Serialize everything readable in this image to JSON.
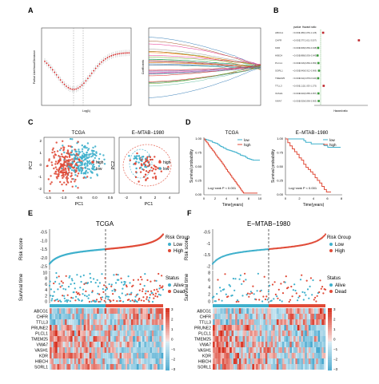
{
  "panels": {
    "A": {
      "letter": "A",
      "xlabel": "Log(λ)",
      "ylabel_left": "Partial Likelihood Deviance",
      "ylabel_right": "Coefficients"
    },
    "B": {
      "letter": "B",
      "col_pvalue": "pvalue",
      "col_hr": "Hazard ratio",
      "xlabel": "Hazard ratio",
      "rows": [
        {
          "gene": "ABCG1",
          "p": "<0.001",
          "hr": "1.089(1.053-1.125)",
          "value": 1.09
        },
        {
          "gene": "CHFR",
          "p": "<0.001",
          "hr": "2.377(1.611-3.507)",
          "value": 2.38
        },
        {
          "gene": "KDR",
          "p": "<0.001",
          "hr": "0.908(0.869-0.948)",
          "value": 0.91
        },
        {
          "gene": "HIBCH",
          "p": "<0.001",
          "hr": "0.888(0.836-0.943)",
          "value": 0.89
        },
        {
          "gene": "PLCL1",
          "p": "<0.001",
          "hr": "0.916(0.884-0.950)",
          "value": 0.92
        },
        {
          "gene": "SORL1",
          "p": "<0.001",
          "hr": "0.940(0.912-0.969)",
          "value": 0.94
        },
        {
          "gene": "TMEM25",
          "p": "<0.001",
          "hr": "0.911(0.878-0.946)",
          "value": 0.91
        },
        {
          "gene": "TTLL3",
          "p": "<0.001",
          "hr": "1.112(1.053-1.175)",
          "value": 1.11
        },
        {
          "gene": "VASH1",
          "p": "<0.001",
          "hr": "0.920(0.885-0.957)",
          "value": 0.92
        },
        {
          "gene": "VWA7",
          "p": "<0.001",
          "hr": "0.929(0.896-0.963)",
          "value": 0.93
        }
      ]
    },
    "C": {
      "letter": "C",
      "left_title": "TCGA",
      "right_title": "E−MTAB−1980",
      "xlabel": "PC1",
      "ylabel": "PC2",
      "legend_high": "high",
      "legend_low": "low",
      "x_ticks_left": [
        "-1.5",
        "-1.0",
        "-0.5",
        "0.0",
        "0.5"
      ],
      "x_ticks_right": [
        "-2",
        "0",
        "2",
        "4"
      ],
      "y_ticks_left": [
        "-2",
        "-1",
        "0",
        "1",
        "2"
      ],
      "y_ticks_right": [
        "-2",
        "0",
        "2"
      ]
    },
    "D": {
      "letter": "D",
      "left_title": "TCGA",
      "right_title": "E−MTAB−1980",
      "xlabel": "Time(years)",
      "ylabel": "Survival probability",
      "pval_left": "Log−rank P < 0.001",
      "pval_right": "Log−rank P < 0.001",
      "legend_low": "low",
      "legend_high": "high",
      "y_ticks": [
        "0.00",
        "0.25",
        "0.50",
        "0.75",
        "1.00"
      ],
      "x_ticks_left": [
        "0",
        "2",
        "4",
        "6",
        "8",
        "10"
      ],
      "x_ticks_right": [
        "0",
        "2",
        "4",
        "6",
        "8"
      ]
    },
    "E": {
      "letter": "E",
      "title": "TCGA",
      "risk_label": "Risk score",
      "surv_label": "Survival time",
      "risk_group_title": "Risk Group",
      "low": "Low",
      "high": "High",
      "status_title": "Status",
      "alive": "Alive",
      "dead": "Dead",
      "risk_ticks": [
        "-2.5",
        "-2.0",
        "-1.5",
        "-1.0",
        "-0.5"
      ],
      "surv_ticks": [
        "0",
        "2",
        "4",
        "6",
        "8",
        "10"
      ],
      "scale": [
        "3",
        "2",
        "1",
        "0",
        "−1",
        "−2",
        "−3"
      ]
    },
    "F": {
      "letter": "F",
      "title": "E−MTAB−1980",
      "risk_label": "Risk score",
      "surv_label": "Survival time",
      "risk_group_title": "Risk Group",
      "low": "Low",
      "high": "High",
      "status_title": "Status",
      "alive": "Alive",
      "dead": "Dead",
      "risk_ticks": [
        "-2",
        "-1.5",
        "-1",
        "-0.5"
      ],
      "surv_ticks": [
        "0",
        "2",
        "4",
        "6",
        "8"
      ],
      "scale": [
        "3",
        "2",
        "1",
        "0",
        "−1",
        "−2",
        "−3"
      ]
    }
  },
  "genes": [
    "ABCG1",
    "CHFR",
    "TTLL3",
    "PRUNE2",
    "PLCL1",
    "TMEM25",
    "VWA7",
    "VASH1",
    "KDR",
    "HIBCH",
    "SORL1"
  ],
  "colors": {
    "high": "#e04b38",
    "low": "#3fb0cc",
    "heat_high": "#d7301f",
    "heat_low": "#4aa9cf",
    "forest": "#3a9a3a"
  }
}
